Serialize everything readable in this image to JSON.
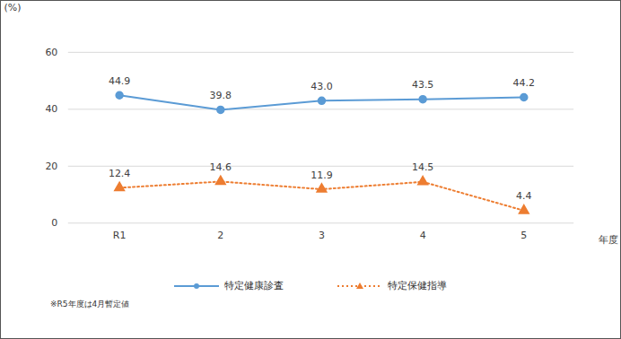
{
  "chart_data": {
    "type": "line",
    "y_label": "(%)",
    "x_label": "年度",
    "note": "※R5年度は4月暫定値",
    "categories": [
      "R1",
      "2",
      "3",
      "4",
      "5"
    ],
    "series": [
      {
        "name": "特定健康診査",
        "color": "#5b9bd5",
        "marker": "circle",
        "line_style": "solid",
        "values": [
          44.9,
          39.8,
          43.0,
          43.5,
          44.2
        ],
        "value_labels": [
          "44.9",
          "39.8",
          "43.0",
          "43.5",
          "44.2"
        ]
      },
      {
        "name": "特定保健指導",
        "color": "#ed7d31",
        "marker": "triangle",
        "line_style": "dotted",
        "values": [
          12.4,
          14.6,
          11.9,
          14.5,
          4.4
        ],
        "value_labels": [
          "12.4",
          "14.6",
          "11.9",
          "14.5",
          "4.4"
        ]
      }
    ],
    "ylim": [
      0,
      60
    ],
    "yticks": [
      0,
      20,
      40,
      60
    ],
    "grid": true,
    "data_labels": true,
    "legend": "bottom"
  }
}
